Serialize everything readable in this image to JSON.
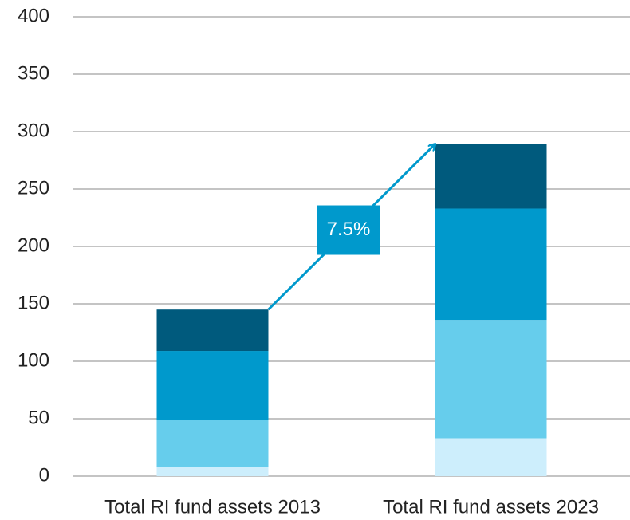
{
  "chart_data": {
    "type": "stacked_bar",
    "categories": [
      "Total RI fund assets 2013",
      "Total RI fund assets 2023"
    ],
    "series": [
      {
        "color": "#cdeefc",
        "values": [
          8,
          33
        ]
      },
      {
        "color": "#66cdec",
        "values": [
          41,
          103
        ]
      },
      {
        "color": "#0099cc",
        "values": [
          60,
          97
        ]
      },
      {
        "color": "#005a7d",
        "values": [
          36,
          56
        ]
      }
    ],
    "annotation": "7.5%",
    "ylim": [
      0,
      400
    ],
    "yticks": [
      0,
      50,
      100,
      150,
      200,
      250,
      300,
      350,
      400
    ],
    "grid": true
  }
}
